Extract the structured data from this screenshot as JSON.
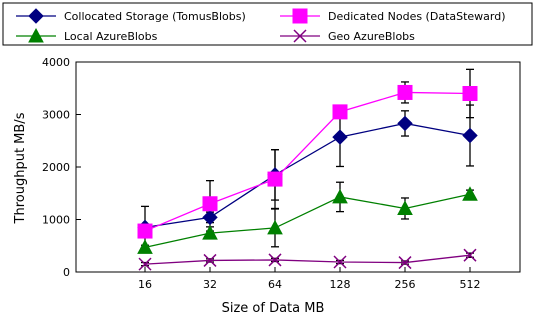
{
  "chart_data": {
    "type": "line",
    "xlabel": "Size of Data MB",
    "ylabel": "Throughput MB/s",
    "categories": [
      "16",
      "32",
      "64",
      "128",
      "256",
      "512"
    ],
    "ylim": [
      0,
      4000
    ],
    "yticks": [
      0,
      1000,
      2000,
      3000,
      4000
    ],
    "grid": false,
    "legend_position": "top",
    "series": [
      {
        "name": "Collocated Storage (TomusBlobs)",
        "color": "#000080",
        "marker": "diamond",
        "values": [
          850,
          1040,
          1850,
          2570,
          2830,
          2600
        ],
        "err": [
          400,
          100,
          480,
          560,
          240,
          580
        ]
      },
      {
        "name": "Dedicated Nodes (DataSteward)",
        "color": "#ff00ff",
        "marker": "square",
        "values": [
          780,
          1300,
          1770,
          3050,
          3420,
          3400
        ],
        "err": [
          60,
          440,
          560,
          60,
          200,
          460
        ]
      },
      {
        "name": "Local AzureBlobs",
        "color": "#008000",
        "marker": "triangle",
        "values": [
          470,
          740,
          840,
          1430,
          1210,
          1480
        ],
        "err": [
          40,
          40,
          360,
          280,
          200,
          80
        ]
      },
      {
        "name": "Geo AzureBlobs",
        "color": "#800080",
        "marker": "x",
        "values": [
          150,
          220,
          230,
          190,
          180,
          320
        ],
        "err": [
          30,
          30,
          30,
          30,
          30,
          40
        ]
      }
    ]
  }
}
